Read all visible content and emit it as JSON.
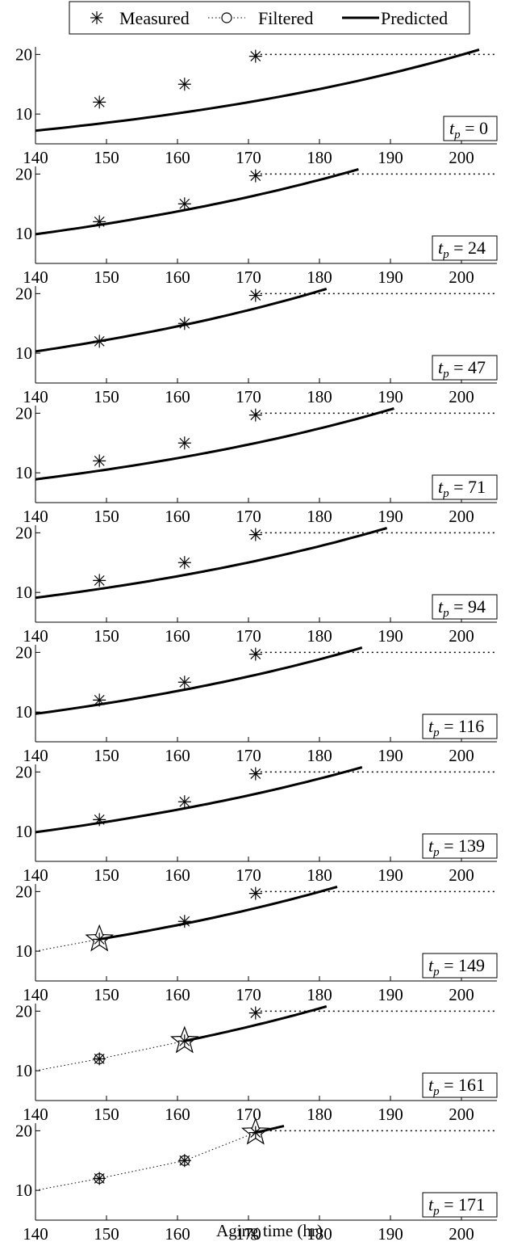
{
  "legend": {
    "measured": "Measured",
    "filtered": "Filtered",
    "predicted": "Predicted"
  },
  "chart_data": {
    "type": "line",
    "xlabel": "Aging time (hr)",
    "ylabel": "",
    "xlim": [
      140,
      205
    ],
    "ylim": [
      5,
      21
    ],
    "x_ticks": [
      140,
      150,
      160,
      170,
      180,
      190,
      200
    ],
    "y_ticks": [
      10,
      20
    ],
    "threshold": 20,
    "measured": {
      "x": [
        149,
        161,
        171
      ],
      "y": [
        12,
        15,
        19.7
      ]
    },
    "panels": [
      {
        "tp_label": "t_p = 0",
        "tp_value": "0",
        "predicted": {
          "x_start": 140,
          "y_start": 7.2,
          "x_end": 202.5,
          "y_end": 20.8
        },
        "filtered": [],
        "current": null
      },
      {
        "tp_label": "t_p = 24",
        "tp_value": "24",
        "predicted": {
          "x_start": 140,
          "y_start": 9.9,
          "x_end": 185.5,
          "y_end": 20.8
        },
        "filtered": [],
        "current": null
      },
      {
        "tp_label": "t_p = 47",
        "tp_value": "47",
        "predicted": {
          "x_start": 140,
          "y_start": 10.3,
          "x_end": 181,
          "y_end": 20.8
        },
        "filtered": [],
        "current": null
      },
      {
        "tp_label": "t_p = 71",
        "tp_value": "71",
        "predicted": {
          "x_start": 140,
          "y_start": 8.9,
          "x_end": 190.5,
          "y_end": 20.8
        },
        "filtered": [],
        "current": null
      },
      {
        "tp_label": "t_p = 94",
        "tp_value": "94",
        "predicted": {
          "x_start": 140,
          "y_start": 9.1,
          "x_end": 189.5,
          "y_end": 20.8
        },
        "filtered": [],
        "current": null
      },
      {
        "tp_label": "t_p = 116",
        "tp_value": "116",
        "predicted": {
          "x_start": 140,
          "y_start": 9.7,
          "x_end": 186,
          "y_end": 20.8
        },
        "filtered": [],
        "current": null
      },
      {
        "tp_label": "t_p = 139",
        "tp_value": "139",
        "predicted": {
          "x_start": 140,
          "y_start": 9.9,
          "x_end": 186,
          "y_end": 20.8
        },
        "filtered": [],
        "current": null
      },
      {
        "tp_label": "t_p = 149",
        "tp_value": "149",
        "predicted": {
          "x_start": 149,
          "y_start": 12,
          "x_end": 182.5,
          "y_end": 20.8
        },
        "filtered": [
          {
            "x": 140,
            "y": 10
          },
          {
            "x": 149,
            "y": 12
          }
        ],
        "current": {
          "x": 149,
          "y": 12
        }
      },
      {
        "tp_label": "t_p = 161",
        "tp_value": "161",
        "predicted": {
          "x_start": 161,
          "y_start": 15,
          "x_end": 181,
          "y_end": 20.8
        },
        "filtered": [
          {
            "x": 140,
            "y": 10
          },
          {
            "x": 149,
            "y": 12
          },
          {
            "x": 161,
            "y": 15
          }
        ],
        "current": {
          "x": 161,
          "y": 15
        }
      },
      {
        "tp_label": "t_p = 171",
        "tp_value": "171",
        "predicted": {
          "x_start": 171,
          "y_start": 19.7,
          "x_end": 175,
          "y_end": 20.8
        },
        "filtered": [
          {
            "x": 140,
            "y": 10
          },
          {
            "x": 149,
            "y": 12
          },
          {
            "x": 161,
            "y": 15
          },
          {
            "x": 171,
            "y": 19.7
          }
        ],
        "current": {
          "x": 171,
          "y": 19.7
        }
      }
    ]
  }
}
